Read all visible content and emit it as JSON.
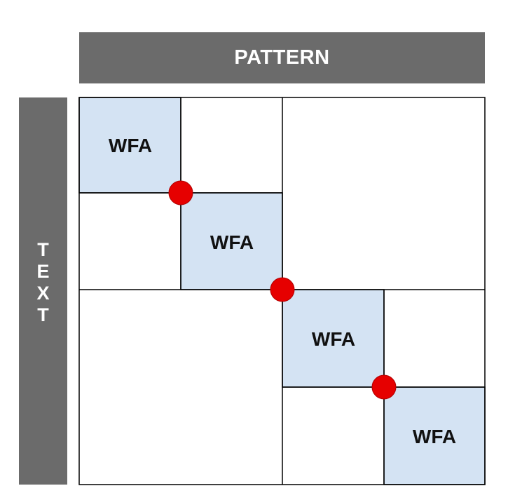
{
  "header": {
    "label": "PATTERN"
  },
  "side": {
    "letters": [
      "T",
      "E",
      "X",
      "T"
    ]
  },
  "blocks": {
    "label": "WFA"
  },
  "colors": {
    "bar": "#6b6b6b",
    "block_fill": "#d4e3f3",
    "junction": "#e60000",
    "grid_line": "#000000"
  }
}
